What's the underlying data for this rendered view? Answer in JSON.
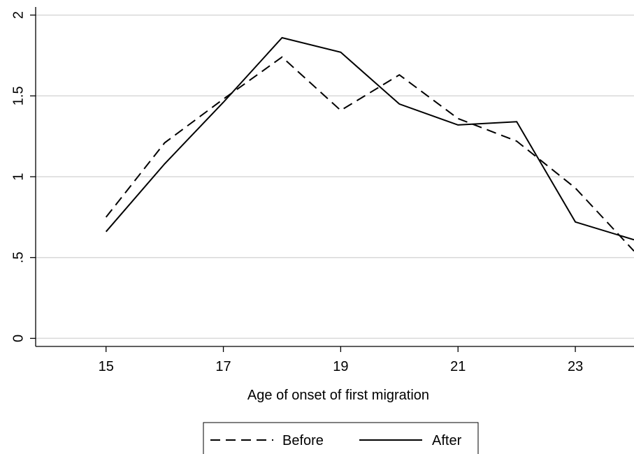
{
  "chart_data": {
    "type": "line",
    "title": "",
    "xlabel": "Age of onset of first migration",
    "ylabel": "",
    "x": [
      15,
      16,
      17,
      18,
      19,
      20,
      21,
      22,
      23,
      24
    ],
    "xlim": [
      13.8,
      24
    ],
    "ylim": [
      -0.05,
      2.05
    ],
    "xticks": [
      {
        "value": 15,
        "label": "15"
      },
      {
        "value": 17,
        "label": "17"
      },
      {
        "value": 19,
        "label": "19"
      },
      {
        "value": 21,
        "label": "21"
      },
      {
        "value": 23,
        "label": "23"
      }
    ],
    "yticks": [
      {
        "value": 0,
        "label": "0"
      },
      {
        "value": 0.5,
        "label": ".5"
      },
      {
        "value": 1,
        "label": "1"
      },
      {
        "value": 1.5,
        "label": "1.5"
      },
      {
        "value": 2,
        "label": "2"
      }
    ],
    "grid": true,
    "legend_position": "bottom",
    "series": [
      {
        "name": "Before",
        "dash": "dashed",
        "color": "#000000",
        "values": [
          0.75,
          1.21,
          1.48,
          1.74,
          1.41,
          1.63,
          1.36,
          1.22,
          0.93,
          0.54
        ]
      },
      {
        "name": "After",
        "dash": "solid",
        "color": "#000000",
        "values": [
          0.66,
          1.08,
          1.46,
          1.86,
          1.77,
          1.45,
          1.32,
          1.34,
          0.72,
          0.61
        ]
      }
    ]
  }
}
